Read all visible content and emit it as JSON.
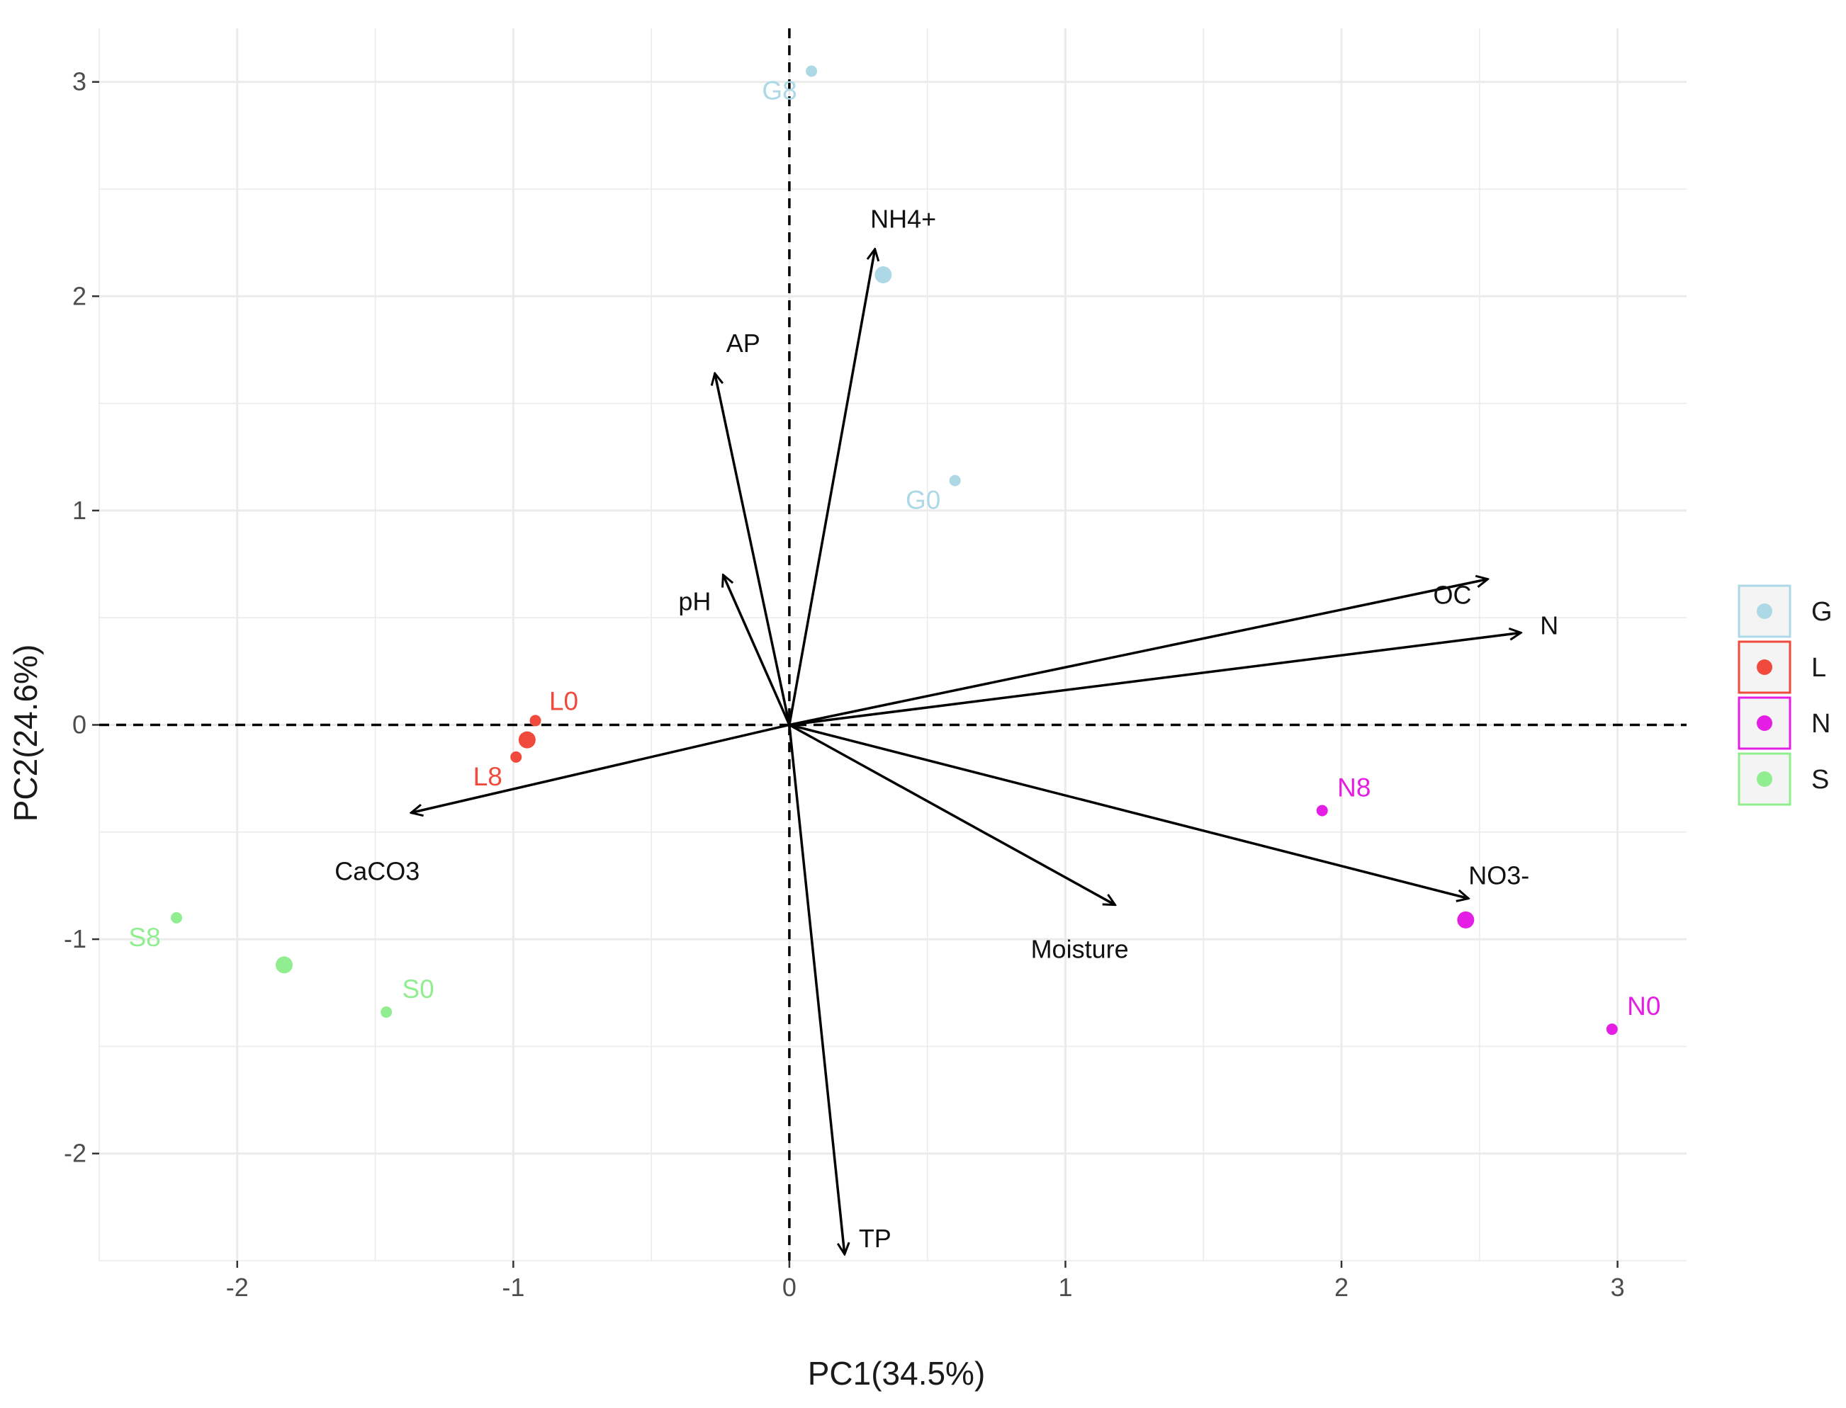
{
  "chart_data": {
    "type": "scatter",
    "subtype": "pca-biplot",
    "title": "",
    "xlabel": "PC1(34.5%)",
    "ylabel": "PC2(24.6%)",
    "xlim": [
      -2.5,
      3.25
    ],
    "ylim": [
      -2.5,
      3.25
    ],
    "x_ticks": [
      -2,
      -1,
      0,
      1,
      2,
      3
    ],
    "y_ticks": [
      -2,
      -1,
      0,
      1,
      2,
      3
    ],
    "grid": true,
    "reference_lines": {
      "x": 0,
      "y": 0,
      "style": "dashed"
    },
    "legend_position": "right",
    "groups": [
      {
        "name": "G",
        "color": "#add8e6"
      },
      {
        "name": "L",
        "color": "#f04a3c"
      },
      {
        "name": "N",
        "color": "#e41ee4"
      },
      {
        "name": "S",
        "color": "#90ee90"
      }
    ],
    "samples": [
      {
        "label": "G8",
        "group": "G",
        "x": 0.08,
        "y": 3.05
      },
      {
        "label": "G0",
        "group": "G",
        "x": 0.6,
        "y": 1.14
      },
      {
        "label": "L0",
        "group": "L",
        "x": -0.92,
        "y": 0.02
      },
      {
        "label": "L8",
        "group": "L",
        "x": -0.99,
        "y": -0.15
      },
      {
        "label": "N8",
        "group": "N",
        "x": 1.93,
        "y": -0.4
      },
      {
        "label": "N0",
        "group": "N",
        "x": 2.98,
        "y": -1.42
      },
      {
        "label": "S8",
        "group": "S",
        "x": -2.22,
        "y": -0.9
      },
      {
        "label": "S0",
        "group": "S",
        "x": -1.46,
        "y": -1.34
      }
    ],
    "centroids": [
      {
        "group": "G",
        "x": 0.34,
        "y": 2.1
      },
      {
        "group": "L",
        "x": -0.95,
        "y": -0.07
      },
      {
        "group": "N",
        "x": 2.45,
        "y": -0.91
      },
      {
        "group": "S",
        "x": -1.83,
        "y": -1.12
      }
    ],
    "loadings": [
      {
        "label": "NH4+",
        "x": 0.31,
        "y": 2.22
      },
      {
        "label": "AP",
        "x": -0.27,
        "y": 1.64
      },
      {
        "label": "pH",
        "x": -0.24,
        "y": 0.7
      },
      {
        "label": "OC",
        "x": 2.53,
        "y": 0.68
      },
      {
        "label": "N",
        "x": 2.65,
        "y": 0.43
      },
      {
        "label": "CaCO3",
        "x": -1.37,
        "y": -0.41
      },
      {
        "label": "NO3-",
        "x": 2.46,
        "y": -0.81
      },
      {
        "label": "Moisture",
        "x": 1.18,
        "y": -0.84
      },
      {
        "label": "TP",
        "x": 0.2,
        "y": -2.47
      }
    ]
  }
}
